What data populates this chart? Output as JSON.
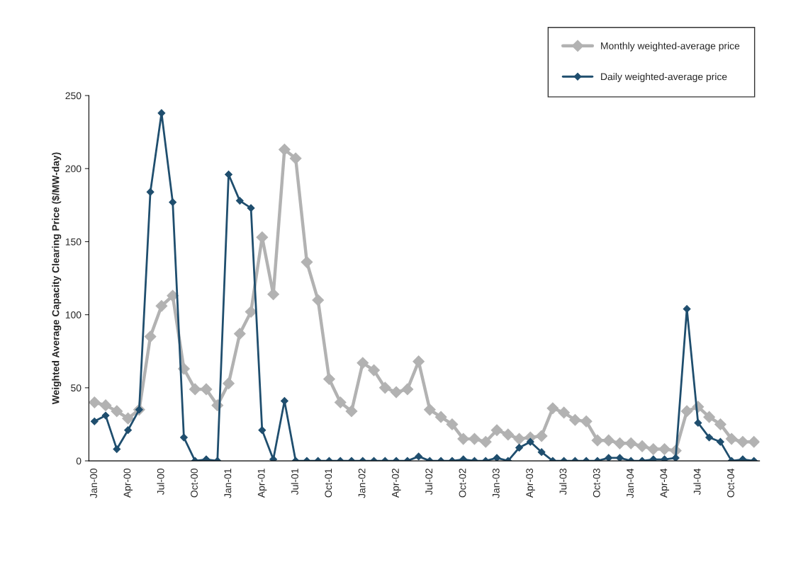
{
  "chart_data": {
    "type": "line",
    "ylabel": "Weighted Average Capacity Clearing Price ($/MW-day)",
    "categories": [
      "Jan-00",
      null,
      null,
      "Apr-00",
      null,
      null,
      "Jul-00",
      null,
      null,
      "Oct-00",
      null,
      null,
      "Jan-01",
      null,
      null,
      "Apr-01",
      null,
      null,
      "Jul-01",
      null,
      null,
      "Oct-01",
      null,
      null,
      "Jan-02",
      null,
      null,
      "Apr-02",
      null,
      null,
      "Jul-02",
      null,
      null,
      "Oct-02",
      null,
      null,
      "Jan-03",
      null,
      null,
      "Apr-03",
      null,
      null,
      "Jul-03",
      null,
      null,
      "Oct-03",
      null,
      null,
      "Jan-04",
      null,
      null,
      "Apr-04",
      null,
      null,
      "Jul-04",
      null,
      null,
      "Oct-04",
      null,
      null
    ],
    "series": [
      {
        "name": "Monthly weighted-average price",
        "color": "#b2b2b2",
        "values": [
          40,
          38,
          34,
          29,
          35,
          85,
          106,
          113,
          63,
          49,
          49,
          38,
          53,
          87,
          102,
          153,
          114,
          213,
          207,
          136,
          110,
          56,
          40,
          34,
          67,
          62,
          50,
          47,
          49,
          68,
          35,
          30,
          25,
          15,
          15,
          13,
          21,
          18,
          15,
          16,
          17,
          36,
          33,
          28,
          27,
          14,
          14,
          12,
          12,
          10,
          8,
          8,
          7,
          34,
          37,
          30,
          25,
          15,
          13,
          13
        ]
      },
      {
        "name": "Daily weighted-average price",
        "color": "#1f4e6e",
        "values": [
          27,
          31,
          8,
          21,
          35,
          184,
          238,
          177,
          16,
          0,
          1,
          0,
          196,
          178,
          173,
          21,
          1,
          41,
          0,
          0,
          0,
          0,
          0,
          0,
          0,
          0,
          0,
          0,
          0,
          3,
          0,
          0,
          0,
          1,
          0,
          0,
          2,
          0,
          9,
          13,
          6,
          0,
          0,
          0,
          0,
          0,
          2,
          2,
          0,
          0,
          1,
          1,
          2,
          104,
          26,
          16,
          13,
          0,
          1,
          0
        ]
      }
    ],
    "ylim": [
      0,
      250
    ],
    "yticks": [
      0,
      50,
      100,
      150,
      200,
      250
    ],
    "grid": false,
    "legend": "top right",
    "marker": "diamond",
    "line_style": "solid"
  }
}
